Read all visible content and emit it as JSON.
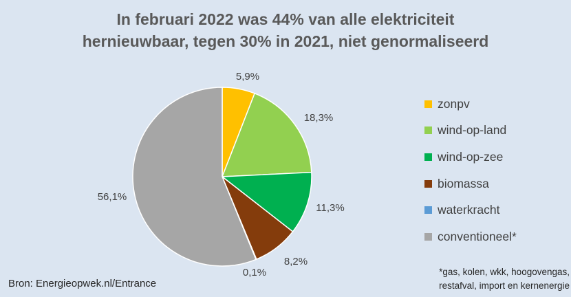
{
  "title": {
    "line1": "In februari 2022 was 44% van alle elektriciteit",
    "line2": "hernieuwbaar, tegen 30% in 2021, niet genormaliseerd"
  },
  "chart_data": {
    "type": "pie",
    "title": "In februari 2022 was 44% van alle elektriciteit hernieuwbaar, tegen 30% in 2021, niet genormaliseerd",
    "legend_position": "right",
    "slices": [
      {
        "name": "zonpv",
        "value": 5.9,
        "label": "5,9%",
        "color": "#ffc000"
      },
      {
        "name": "wind-op-land",
        "value": 18.3,
        "label": "18,3%",
        "color": "#92d050"
      },
      {
        "name": "wind-op-zee",
        "value": 11.3,
        "label": "11,3%",
        "color": "#00b050"
      },
      {
        "name": "biomassa",
        "value": 8.2,
        "label": "8,2%",
        "color": "#843c0c"
      },
      {
        "name": "waterkracht",
        "value": 0.1,
        "label": "0,1%",
        "color": "#5b9bd5"
      },
      {
        "name": "conventioneel*",
        "value": 56.1,
        "label": "56,1%",
        "color": "#a6a6a6"
      }
    ]
  },
  "source": "Bron: Energieopwek.nl/Entrance",
  "footnote": {
    "line1": "*gas, kolen, wkk, hoogovengas,",
    "line2": "restafval, import en kernenergie"
  }
}
